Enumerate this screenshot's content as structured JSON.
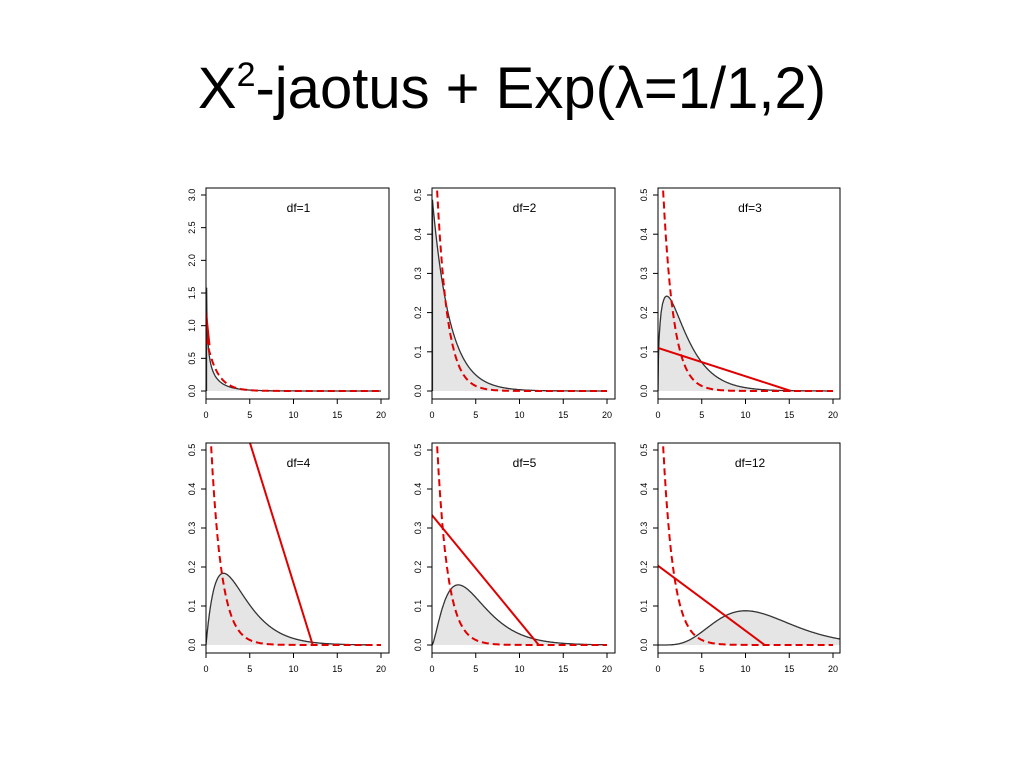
{
  "slide": {
    "title_base": "X",
    "title_sup": "2",
    "title_rest": "-jaotus + Exp(λ=1/1,2)"
  },
  "colors": {
    "fill": "#e5e5e5",
    "density_line": "#333333",
    "exp_line": "#e00000",
    "axis": "#000000"
  },
  "chart_data": [
    {
      "type": "area",
      "title": "df=1",
      "df": 1,
      "xlim": [
        0,
        20
      ],
      "ylim": [
        0,
        3.0
      ],
      "x_ticks": [
        "0",
        "5",
        "10",
        "15",
        "20"
      ],
      "y_ticks": [
        "0.0",
        "0.5",
        "1.0",
        "1.5",
        "2.0",
        "2.5",
        "3.0"
      ],
      "series": [
        {
          "kind": "chi-square density (shaded)",
          "df": 1,
          "x_from": 0.06,
          "x_to": 20
        },
        {
          "kind": "exponential density (red dashed)",
          "rate": 0.8333
        },
        {
          "kind": "red straight line",
          "points": [
            [
              0,
              1.2
            ],
            [
              0.4,
              0.7
            ]
          ]
        }
      ]
    },
    {
      "type": "area",
      "title": "df=2",
      "df": 2,
      "xlim": [
        0,
        20
      ],
      "ylim": [
        0,
        0.5
      ],
      "x_ticks": [
        "0",
        "5",
        "10",
        "15",
        "20"
      ],
      "y_ticks": [
        "0.0",
        "0.1",
        "0.2",
        "0.3",
        "0.4",
        "0.5"
      ],
      "series": [
        {
          "kind": "chi-square density (shaded)",
          "df": 2,
          "x_from": 0.05,
          "x_to": 20
        },
        {
          "kind": "exponential density (red dashed)",
          "rate": 0.8333
        }
      ]
    },
    {
      "type": "area",
      "title": "df=3",
      "df": 3,
      "xlim": [
        0,
        20
      ],
      "ylim": [
        0,
        0.5
      ],
      "x_ticks": [
        "0",
        "5",
        "10",
        "15",
        "20"
      ],
      "y_ticks": [
        "0.0",
        "0.1",
        "0.2",
        "0.3",
        "0.4",
        "0.5"
      ],
      "series": [
        {
          "kind": "chi-square density (shaded)",
          "df": 3,
          "x_from": 0,
          "x_to": 20
        },
        {
          "kind": "exponential density (red dashed)",
          "rate": 0.8333
        },
        {
          "kind": "red straight line",
          "points": [
            [
              -1,
              0.117
            ],
            [
              15.2,
              0.0
            ]
          ]
        }
      ]
    },
    {
      "type": "area",
      "title": "df=4",
      "df": 4,
      "xlim": [
        0,
        20
      ],
      "ylim": [
        0,
        0.5
      ],
      "x_ticks": [
        "0",
        "5",
        "10",
        "15",
        "20"
      ],
      "y_ticks": [
        "0.0",
        "0.1",
        "0.2",
        "0.3",
        "0.4",
        "0.5"
      ],
      "series": [
        {
          "kind": "chi-square density (shaded)",
          "df": 4,
          "x_from": 0,
          "x_to": 19
        },
        {
          "kind": "exponential density (red dashed)",
          "rate": 0.8333
        },
        {
          "kind": "red straight line",
          "points": [
            [
              5,
              0.52
            ],
            [
              12.2,
              0.0
            ]
          ]
        }
      ]
    },
    {
      "type": "area",
      "title": "df=5",
      "df": 5,
      "xlim": [
        0,
        20
      ],
      "ylim": [
        0,
        0.5
      ],
      "x_ticks": [
        "0",
        "5",
        "10",
        "15",
        "20"
      ],
      "y_ticks": [
        "0.0",
        "0.1",
        "0.2",
        "0.3",
        "0.4",
        "0.5"
      ],
      "series": [
        {
          "kind": "chi-square density (shaded)",
          "df": 5,
          "x_from": 0,
          "x_to": 20
        },
        {
          "kind": "exponential density (red dashed)",
          "rate": 0.8333
        },
        {
          "kind": "red straight line",
          "points": [
            [
              -1,
              0.36
            ],
            [
              12.2,
              0.0
            ]
          ]
        }
      ]
    },
    {
      "type": "area",
      "title": "df=12",
      "df": 12,
      "xlim": [
        0,
        20
      ],
      "ylim": [
        0,
        0.5
      ],
      "x_ticks": [
        "0",
        "5",
        "10",
        "15",
        "20"
      ],
      "y_ticks": [
        "0.0",
        "0.1",
        "0.2",
        "0.3",
        "0.4",
        "0.5"
      ],
      "series": [
        {
          "kind": "chi-square density (shaded)",
          "df": 12,
          "x_from": 0,
          "x_to": 21
        },
        {
          "kind": "exponential density (red dashed)",
          "rate": 0.8333
        },
        {
          "kind": "red straight line",
          "points": [
            [
              -1,
              0.22
            ],
            [
              12.2,
              0.0
            ]
          ]
        }
      ]
    }
  ]
}
